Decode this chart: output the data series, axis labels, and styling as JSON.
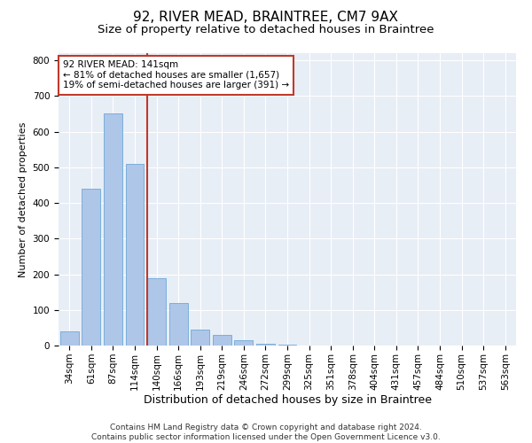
{
  "title1": "92, RIVER MEAD, BRAINTREE, CM7 9AX",
  "title2": "Size of property relative to detached houses in Braintree",
  "xlabel": "Distribution of detached houses by size in Braintree",
  "ylabel": "Number of detached properties",
  "bar_labels": [
    "34sqm",
    "61sqm",
    "87sqm",
    "114sqm",
    "140sqm",
    "166sqm",
    "193sqm",
    "219sqm",
    "246sqm",
    "272sqm",
    "299sqm",
    "325sqm",
    "351sqm",
    "378sqm",
    "404sqm",
    "431sqm",
    "457sqm",
    "484sqm",
    "510sqm",
    "537sqm",
    "563sqm"
  ],
  "bar_values": [
    40,
    440,
    650,
    510,
    190,
    120,
    45,
    30,
    15,
    5,
    2,
    1,
    0,
    0,
    0,
    0,
    0,
    0,
    0,
    0,
    0
  ],
  "bar_color": "#aec6e8",
  "bar_edge_color": "#5a9fd4",
  "vline_color": "#c0392b",
  "ylim": [
    0,
    820
  ],
  "yticks": [
    0,
    100,
    200,
    300,
    400,
    500,
    600,
    700,
    800
  ],
  "annotation_text": "92 RIVER MEAD: 141sqm\n← 81% of detached houses are smaller (1,657)\n19% of semi-detached houses are larger (391) →",
  "annotation_box_color": "white",
  "annotation_box_edge": "#c0392b",
  "background_color": "#e8eef6",
  "footnote": "Contains HM Land Registry data © Crown copyright and database right 2024.\nContains public sector information licensed under the Open Government Licence v3.0.",
  "title1_fontsize": 11,
  "title2_fontsize": 9.5,
  "xlabel_fontsize": 9,
  "ylabel_fontsize": 8,
  "tick_fontsize": 7.5,
  "annot_fontsize": 7.5,
  "footnote_fontsize": 6.5
}
